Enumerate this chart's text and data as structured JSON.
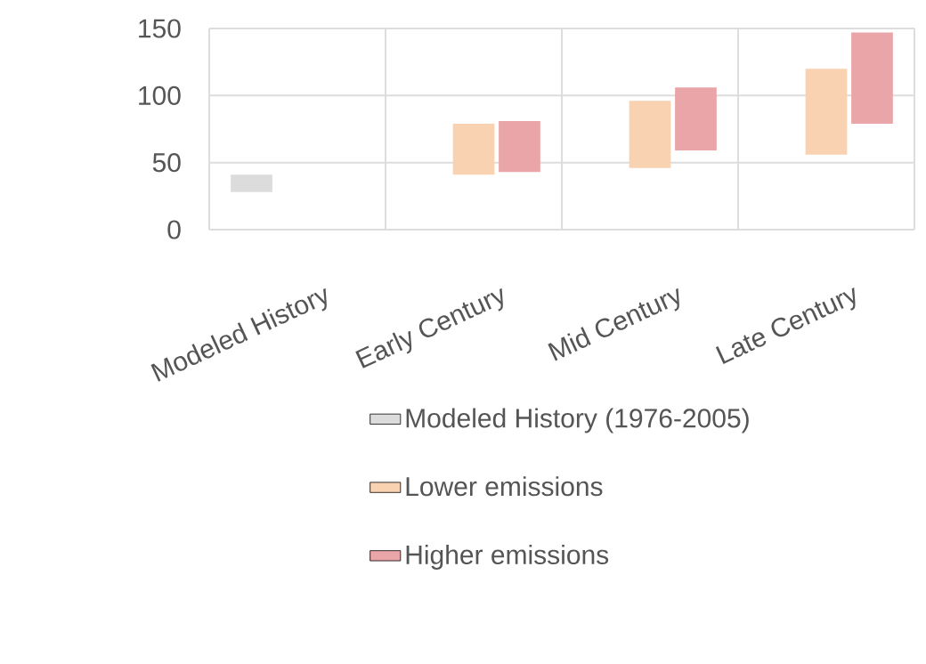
{
  "chart_data": {
    "type": "bar",
    "categories": [
      "Modeled History",
      "Early Century",
      "Mid Century",
      "Late Century"
    ],
    "series": [
      {
        "name": "Modeled History (1976-2005)",
        "color": "#dcdcdc",
        "base": [
          28,
          null,
          null,
          null
        ],
        "values": [
          13,
          null,
          null,
          null
        ]
      },
      {
        "name": "Lower emissions",
        "color": "#f9d2b2",
        "base": [
          null,
          41,
          46,
          56
        ],
        "values": [
          null,
          38,
          50,
          64
        ]
      },
      {
        "name": "Higher emissions",
        "color": "#eaa5a8",
        "base": [
          null,
          43,
          59,
          79
        ],
        "values": [
          null,
          38,
          47,
          68
        ]
      }
    ],
    "ylim": [
      0,
      150
    ],
    "yticks": [
      0,
      50,
      100,
      150
    ],
    "grid": true,
    "legend": "bottom"
  }
}
